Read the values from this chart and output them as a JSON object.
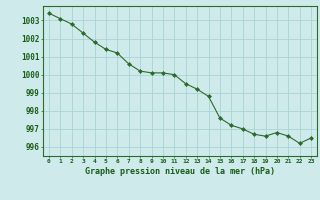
{
  "x": [
    0,
    1,
    2,
    3,
    4,
    5,
    6,
    7,
    8,
    9,
    10,
    11,
    12,
    13,
    14,
    15,
    16,
    17,
    18,
    19,
    20,
    21,
    22,
    23
  ],
  "y": [
    1003.4,
    1003.1,
    1002.8,
    1002.3,
    1001.8,
    1001.4,
    1001.2,
    1000.6,
    1000.2,
    1000.1,
    1000.1,
    1000.0,
    999.5,
    999.2,
    998.8,
    997.6,
    997.2,
    997.0,
    996.7,
    996.6,
    996.8,
    996.6,
    996.2,
    996.5
  ],
  "ylim": [
    995.5,
    1003.8
  ],
  "yticks": [
    996,
    997,
    998,
    999,
    1000,
    1001,
    1002,
    1003
  ],
  "xlabel": "Graphe pression niveau de la mer (hPa)",
  "bg_color": "#ceeaea",
  "line_color": "#2d6b2d",
  "marker_color": "#2d6b2d",
  "grid_color": "#aad4d4",
  "tick_label_color": "#1a5c1a",
  "xlabel_color": "#1a5c1a",
  "spine_color": "#2d6b2d"
}
